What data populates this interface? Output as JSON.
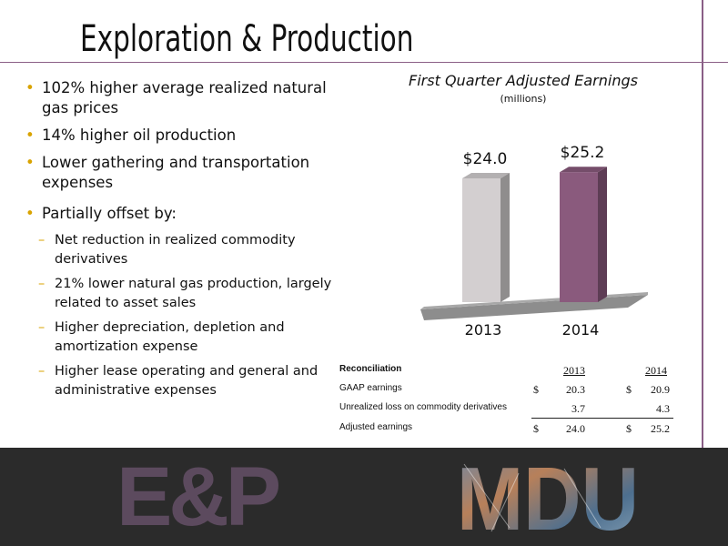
{
  "header": {
    "title": "Exploration & Production"
  },
  "bullets": {
    "b1": "102% higher average realized natural gas prices",
    "b2": "14% higher oil production",
    "b3": "Lower gathering and transportation expenses",
    "b4": "Partially offset by:",
    "sub": [
      "Net reduction in realized commodity derivatives",
      "21% lower natural gas production, largely related to asset sales",
      "Higher depreciation, depletion and amortization expense",
      "Higher lease operating and general and administrative expenses"
    ]
  },
  "chart_data": {
    "type": "bar",
    "title": "First Quarter Adjusted Earnings",
    "subtitle": "(millions)",
    "categories": [
      "2013",
      "2014"
    ],
    "values": [
      24.0,
      25.2
    ],
    "value_labels": [
      "$24.0",
      "$25.2"
    ],
    "colors": [
      "#d3cfd0",
      "#8a5a7d"
    ],
    "ylim": [
      0,
      30
    ],
    "grid": false,
    "legend": "none"
  },
  "reconciliation": {
    "heading": "Reconciliation",
    "years": [
      "2013",
      "2014"
    ],
    "rows": [
      {
        "label": "GAAP earnings",
        "dollar": "$",
        "v2013": "20.3",
        "v2014": "20.9"
      },
      {
        "label": "Unrealized loss on commodity derivatives",
        "dollar": "",
        "v2013": "3.7",
        "v2014": "4.3"
      },
      {
        "label": "Adjusted earnings",
        "dollar": "$",
        "v2013": "24.0",
        "v2014": "25.2"
      }
    ]
  },
  "footer": {
    "left_logo": "E&P",
    "right_logo": "MDU"
  },
  "colors": {
    "accent": "#8a5f86",
    "bullet": "#d9a300",
    "footer_bg": "#2b2b2b"
  }
}
